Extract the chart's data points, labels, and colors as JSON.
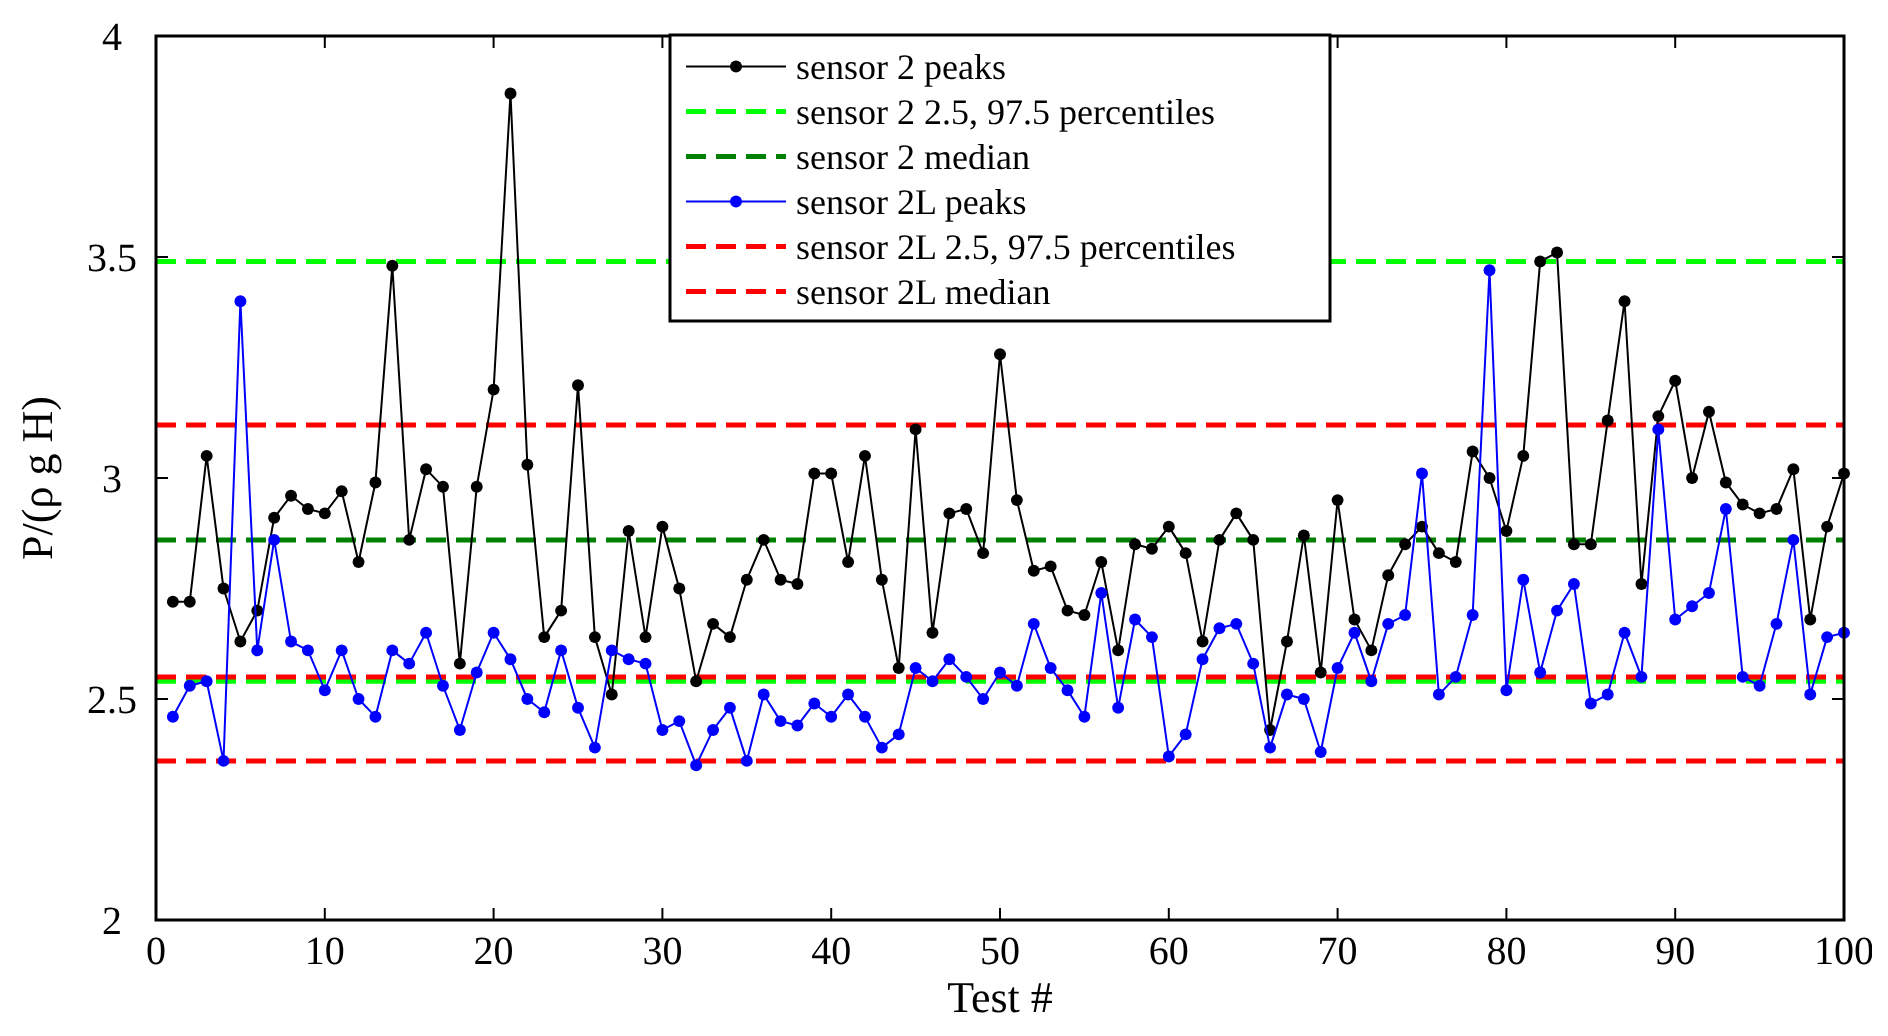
{
  "chart_data": {
    "type": "line",
    "xlabel": "Test #",
    "ylabel": "P/(ρ g H)",
    "x": [
      1,
      2,
      3,
      4,
      5,
      6,
      7,
      8,
      9,
      10,
      11,
      12,
      13,
      14,
      15,
      16,
      17,
      18,
      19,
      20,
      21,
      22,
      23,
      24,
      25,
      26,
      27,
      28,
      29,
      30,
      31,
      32,
      33,
      34,
      35,
      36,
      37,
      38,
      39,
      40,
      41,
      42,
      43,
      44,
      45,
      46,
      47,
      48,
      49,
      50,
      51,
      52,
      53,
      54,
      55,
      56,
      57,
      58,
      59,
      60,
      61,
      62,
      63,
      64,
      65,
      66,
      67,
      68,
      69,
      70,
      71,
      72,
      73,
      74,
      75,
      76,
      77,
      78,
      79,
      80,
      81,
      82,
      83,
      84,
      85,
      86,
      87,
      88,
      89,
      90,
      91,
      92,
      93,
      94,
      95,
      96,
      97,
      98,
      99,
      100
    ],
    "series": [
      {
        "name": "sensor 2 peaks",
        "color": "#000000",
        "values": [
          2.72,
          2.72,
          3.05,
          2.75,
          2.63,
          2.7,
          2.91,
          2.96,
          2.93,
          2.92,
          2.97,
          2.81,
          2.99,
          3.48,
          2.86,
          3.02,
          2.98,
          2.58,
          2.98,
          3.2,
          3.87,
          3.03,
          2.64,
          2.7,
          3.21,
          2.64,
          2.51,
          2.88,
          2.64,
          2.89,
          2.75,
          2.54,
          2.67,
          2.64,
          2.77,
          2.86,
          2.77,
          2.76,
          3.01,
          3.01,
          2.81,
          3.05,
          2.77,
          2.57,
          3.11,
          2.65,
          2.92,
          2.93,
          2.83,
          3.28,
          2.95,
          2.79,
          2.8,
          2.7,
          2.69,
          2.81,
          2.61,
          2.85,
          2.84,
          2.89,
          2.83,
          2.63,
          2.86,
          2.92,
          2.86,
          2.43,
          2.63,
          2.87,
          2.56,
          2.95,
          2.68,
          2.61,
          2.78,
          2.85,
          2.89,
          2.83,
          2.81,
          3.06,
          3.0,
          2.88,
          3.05,
          3.49,
          3.51,
          2.85,
          2.85,
          3.13,
          3.4,
          2.76,
          3.14,
          3.22,
          3.0,
          3.15,
          2.99,
          2.94,
          2.92,
          2.93,
          3.02,
          2.68,
          2.89,
          3.01
        ]
      },
      {
        "name": "sensor 2L peaks",
        "color": "#0000ff",
        "values": [
          2.46,
          2.53,
          2.54,
          2.36,
          3.4,
          2.61,
          2.86,
          2.63,
          2.61,
          2.52,
          2.61,
          2.5,
          2.46,
          2.61,
          2.58,
          2.65,
          2.53,
          2.43,
          2.56,
          2.65,
          2.59,
          2.5,
          2.47,
          2.61,
          2.48,
          2.39,
          2.61,
          2.59,
          2.58,
          2.43,
          2.45,
          2.35,
          2.43,
          2.48,
          2.36,
          2.51,
          2.45,
          2.44,
          2.49,
          2.46,
          2.51,
          2.46,
          2.39,
          2.42,
          2.57,
          2.54,
          2.59,
          2.55,
          2.5,
          2.56,
          2.53,
          2.67,
          2.57,
          2.52,
          2.46,
          2.74,
          2.48,
          2.68,
          2.64,
          2.37,
          2.42,
          2.59,
          2.66,
          2.67,
          2.58,
          2.39,
          2.51,
          2.5,
          2.38,
          2.57,
          2.65,
          2.54,
          2.67,
          2.69,
          3.01,
          2.51,
          2.55,
          2.69,
          3.47,
          2.52,
          2.77,
          2.56,
          2.7,
          2.76,
          2.49,
          2.51,
          2.65,
          2.55,
          3.11,
          2.68,
          2.71,
          2.74,
          2.93,
          2.55,
          2.53,
          2.67,
          2.86,
          2.51,
          2.64,
          2.65
        ]
      }
    ],
    "ref_lines": [
      {
        "axis": "y",
        "value": 3.49,
        "label": "sensor 2 2.5, 97.5 percentiles",
        "color": "#00ff00",
        "line_style": "dashed"
      },
      {
        "axis": "y",
        "value": 2.54,
        "label": null,
        "color": "#00ff00",
        "line_style": "dashed"
      },
      {
        "axis": "y",
        "value": 2.86,
        "label": "sensor 2 median",
        "color": "#008000",
        "line_style": "dashed"
      },
      {
        "axis": "y",
        "value": 3.12,
        "label": "sensor 2L 2.5, 97.5 percentiles",
        "color": "#ff0000",
        "line_style": "dashed"
      },
      {
        "axis": "y",
        "value": 2.36,
        "label": null,
        "color": "#ff0000",
        "line_style": "dashed"
      },
      {
        "axis": "y",
        "value": 2.55,
        "label": "sensor 2L median",
        "color": "#ff0000",
        "line_style": "dashed"
      }
    ],
    "xlim": [
      0,
      100
    ],
    "xticks": [
      0,
      10,
      20,
      30,
      40,
      50,
      60,
      70,
      80,
      90,
      100
    ],
    "ylim": [
      2,
      4
    ],
    "yticks": [
      2,
      2.5,
      3,
      3.5,
      4
    ],
    "marker": "circle",
    "line_style": "solid",
    "grid": false,
    "legend": "top"
  }
}
